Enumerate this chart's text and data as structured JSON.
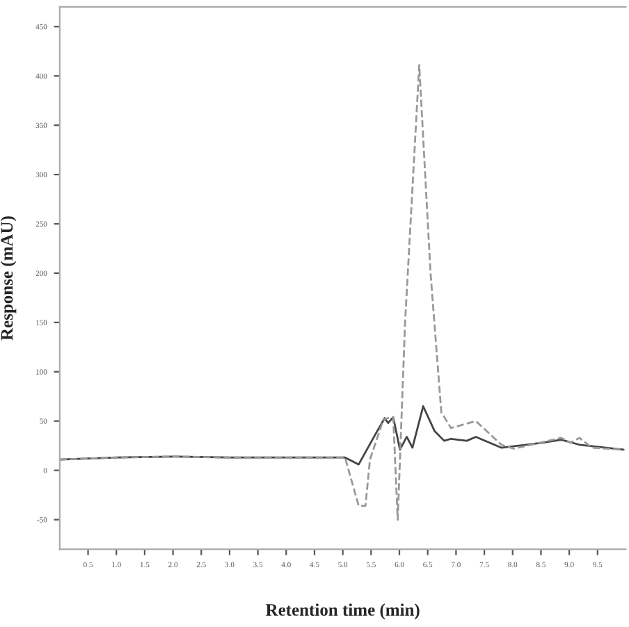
{
  "chart_data": {
    "type": "line",
    "xlabel": "Retention time (min)",
    "ylabel": "Response (mAU)",
    "xlim": [
      0,
      10
    ],
    "ylim": [
      -80,
      470
    ],
    "xticks": [
      {
        "value": 0.5,
        "label": "0.5"
      },
      {
        "value": 1.0,
        "label": "1.0"
      },
      {
        "value": 1.5,
        "label": "1.5"
      },
      {
        "value": 2.0,
        "label": "2.0"
      },
      {
        "value": 2.5,
        "label": "2.5"
      },
      {
        "value": 3.0,
        "label": "3.0"
      },
      {
        "value": 3.5,
        "label": "3.5"
      },
      {
        "value": 4.0,
        "label": "4.0"
      },
      {
        "value": 4.5,
        "label": "4.5"
      },
      {
        "value": 5.0,
        "label": "5.0"
      },
      {
        "value": 5.5,
        "label": "5.5"
      },
      {
        "value": 6.0,
        "label": "6.0"
      },
      {
        "value": 6.5,
        "label": "6.5"
      },
      {
        "value": 7.0,
        "label": "7.0"
      },
      {
        "value": 7.5,
        "label": "7.5"
      },
      {
        "value": 8.0,
        "label": "8.0"
      },
      {
        "value": 8.5,
        "label": "8.5"
      },
      {
        "value": 9.0,
        "label": "9.0"
      },
      {
        "value": 9.5,
        "label": "9.5"
      }
    ],
    "yticks": [
      -50,
      0,
      50,
      100,
      150,
      200,
      250,
      300,
      350,
      400,
      450
    ],
    "grid": false,
    "legend": false,
    "series": [
      {
        "color": "#444444",
        "line_style": "solid",
        "x": [
          0,
          1,
          2,
          3,
          4,
          5.04,
          5.28,
          5.57,
          5.74,
          5.8,
          5.89,
          6.01,
          6.13,
          6.23,
          6.42,
          6.62,
          6.79,
          6.91,
          7.19,
          7.35,
          7.8,
          8.53,
          8.86,
          9.18,
          9.96
        ],
        "values": [
          11,
          13,
          14,
          13,
          13,
          13,
          6,
          36,
          53,
          48,
          54,
          21,
          34,
          23,
          65,
          40,
          30,
          32,
          30,
          34,
          23,
          28,
          31,
          26,
          21
        ]
      },
      {
        "color": "#999999",
        "line_style": "dashed",
        "x": [
          0,
          1,
          2,
          3,
          4,
          5.04,
          5.28,
          5.4,
          5.48,
          5.72,
          5.89,
          5.97,
          6.1,
          6.35,
          6.55,
          6.74,
          6.91,
          7.35,
          7.8,
          8.02,
          8.86,
          9.02,
          9.18,
          9.4,
          9.96
        ],
        "values": [
          11,
          13,
          14,
          13,
          13,
          13,
          -36,
          -36,
          11,
          52,
          54,
          -50,
          150,
          411,
          200,
          59,
          43,
          50,
          26,
          22,
          33,
          28,
          33,
          23,
          21
        ]
      }
    ]
  }
}
